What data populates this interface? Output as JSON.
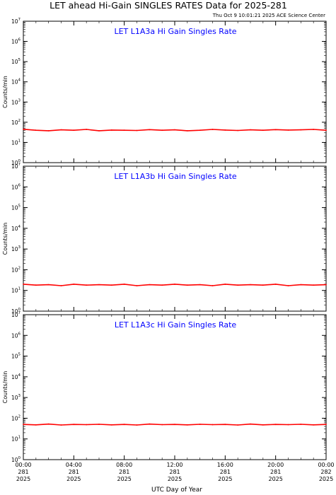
{
  "title": "LET ahead Hi-Gain SINGLES RATES Data for 2025-281",
  "subtitle": "Thu Oct  9 10:01:21 2025 ACE Science Center",
  "xlabel": "UTC Day of Year",
  "x_ticks": [
    {
      "line1": "00:00",
      "line2": "281",
      "line3": "2025"
    },
    {
      "line1": "04:00",
      "line2": "281",
      "line3": "2025"
    },
    {
      "line1": "08:00",
      "line2": "281",
      "line3": "2025"
    },
    {
      "line1": "12:00",
      "line2": "281",
      "line3": "2025"
    },
    {
      "line1": "16:00",
      "line2": "281",
      "line3": "2025"
    },
    {
      "line1": "20:00",
      "line2": "281",
      "line3": "2025"
    },
    {
      "line1": "00:00",
      "line2": "282",
      "line3": "2025"
    }
  ],
  "colors": {
    "line": "#ff0000",
    "panel_title": "#0000ff",
    "axes": "#000000"
  },
  "chart_data": [
    {
      "type": "line",
      "title": "LET L1A3a Hi Gain Singles Rate",
      "ylabel": "Counts/min",
      "yscale": "log",
      "ylim": [
        1,
        10000000
      ],
      "xlim_hours": [
        0,
        24
      ],
      "y_tick_labels": [
        "10^0",
        "10^1",
        "10^2",
        "10^3",
        "10^4",
        "10^5",
        "10^6",
        "10^7"
      ],
      "series": [
        {
          "x_hours": [
            0,
            1,
            2,
            3,
            4,
            5,
            6,
            7,
            8,
            9,
            10,
            11,
            12,
            13,
            14,
            15,
            16,
            17,
            18,
            19,
            20,
            21,
            22,
            23,
            24
          ],
          "values": [
            45,
            40,
            38,
            42,
            40,
            44,
            38,
            41,
            40,
            39,
            43,
            40,
            42,
            38,
            40,
            44,
            41,
            39,
            42,
            40,
            43,
            41,
            42,
            44,
            40
          ]
        }
      ]
    },
    {
      "type": "line",
      "title": "LET L1A3b Hi Gain Singles Rate",
      "ylabel": "Counts/min",
      "yscale": "log",
      "ylim": [
        1,
        10000000
      ],
      "xlim_hours": [
        0,
        24
      ],
      "y_tick_labels": [
        "10^0",
        "10^1",
        "10^2",
        "10^3",
        "10^4",
        "10^5",
        "10^6",
        "10^7"
      ],
      "series": [
        {
          "x_hours": [
            0,
            1,
            2,
            3,
            4,
            5,
            6,
            7,
            8,
            9,
            10,
            11,
            12,
            13,
            14,
            15,
            16,
            17,
            18,
            19,
            20,
            21,
            22,
            23,
            24
          ],
          "values": [
            20,
            18,
            19,
            17,
            20,
            18,
            19,
            18,
            20,
            17,
            19,
            18,
            20,
            18,
            19,
            17,
            20,
            18,
            19,
            18,
            20,
            17,
            19,
            18,
            19
          ]
        }
      ]
    },
    {
      "type": "line",
      "title": "LET L1A3c Hi Gain Singles Rate",
      "ylabel": "Counts/min",
      "yscale": "log",
      "ylim": [
        1,
        10000000
      ],
      "xlim_hours": [
        0,
        24
      ],
      "y_tick_labels": [
        "10^0",
        "10^1",
        "10^2",
        "10^3",
        "10^4",
        "10^5",
        "10^6",
        "10^7"
      ],
      "series": [
        {
          "x_hours": [
            0,
            1,
            2,
            3,
            4,
            5,
            6,
            7,
            8,
            9,
            10,
            11,
            12,
            13,
            14,
            15,
            16,
            17,
            18,
            19,
            20,
            21,
            22,
            23,
            24
          ],
          "values": [
            50,
            48,
            52,
            47,
            50,
            49,
            51,
            48,
            50,
            47,
            52,
            49,
            50,
            48,
            51,
            49,
            50,
            47,
            52,
            48,
            50,
            49,
            51,
            48,
            50
          ]
        }
      ]
    }
  ]
}
